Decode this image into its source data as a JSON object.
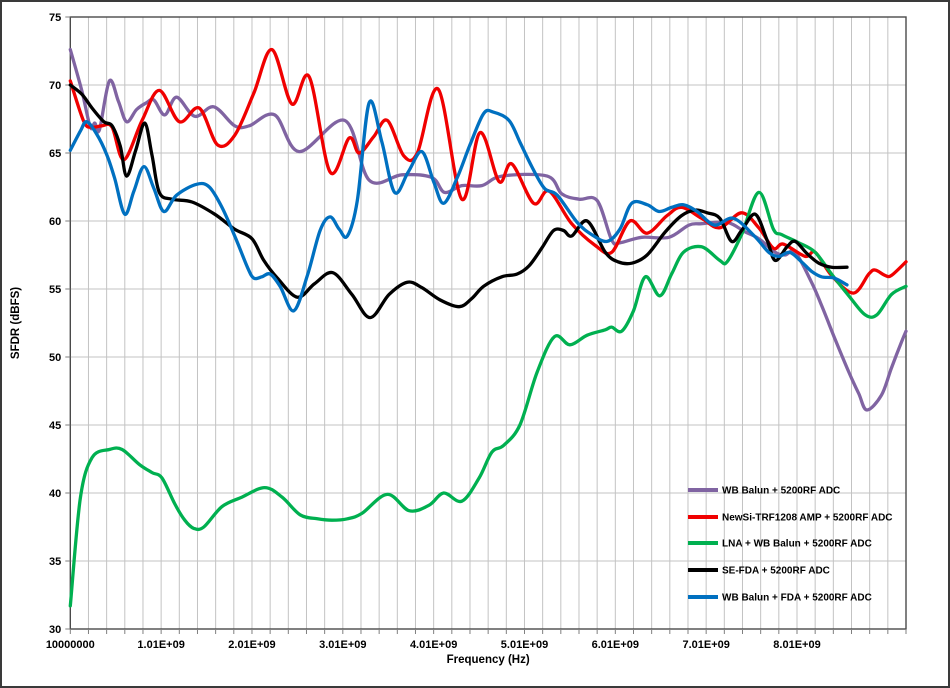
{
  "chart_data": {
    "type": "line",
    "title": "",
    "xlabel": "Frequency (Hz)",
    "ylabel": "SFDR (dBFS)",
    "grid": true,
    "legend_position": "inside-bottom-right",
    "x_axis": {
      "unit": "GHz",
      "min_ghz": 0.01,
      "max_ghz": 9.21,
      "minor_step_ghz": 0.2,
      "tick_labels": [
        {
          "value_ghz": 0.01,
          "label": "10000000"
        },
        {
          "value_ghz": 1.01,
          "label": "1.01E+09"
        },
        {
          "value_ghz": 2.01,
          "label": "2.01E+09"
        },
        {
          "value_ghz": 3.01,
          "label": "3.01E+09"
        },
        {
          "value_ghz": 4.01,
          "label": "4.01E+09"
        },
        {
          "value_ghz": 5.01,
          "label": "5.01E+09"
        },
        {
          "value_ghz": 6.01,
          "label": "6.01E+09"
        },
        {
          "value_ghz": 7.01,
          "label": "7.01E+09"
        },
        {
          "value_ghz": 8.01,
          "label": "8.01E+09"
        }
      ]
    },
    "y_axis": {
      "min": 30,
      "max": 75,
      "step": 5,
      "tick_labels": [
        "30",
        "35",
        "40",
        "45",
        "50",
        "55",
        "60",
        "65",
        "70",
        "75"
      ]
    },
    "series": [
      {
        "id": "wb-balun",
        "name": "WB Balun + 5200RF ADC",
        "color": "#8064A2",
        "points": [
          [
            0.01,
            72.6
          ],
          [
            0.14,
            69.5
          ],
          [
            0.23,
            66.9
          ],
          [
            0.28,
            67.2
          ],
          [
            0.33,
            66.7
          ],
          [
            0.44,
            70.3
          ],
          [
            0.54,
            68.8
          ],
          [
            0.63,
            67.3
          ],
          [
            0.74,
            68.2
          ],
          [
            0.85,
            68.7
          ],
          [
            0.93,
            68.9
          ],
          [
            1.05,
            67.8
          ],
          [
            1.18,
            69.1
          ],
          [
            1.38,
            67.7
          ],
          [
            1.59,
            68.4
          ],
          [
            1.82,
            67.0
          ],
          [
            1.98,
            67.0
          ],
          [
            2.26,
            67.8
          ],
          [
            2.53,
            65.1
          ],
          [
            3.03,
            67.4
          ],
          [
            3.3,
            63.0
          ],
          [
            3.66,
            63.4
          ],
          [
            3.99,
            63.2
          ],
          [
            4.13,
            62.1
          ],
          [
            4.32,
            62.6
          ],
          [
            4.54,
            62.6
          ],
          [
            4.76,
            63.3
          ],
          [
            5.26,
            63.3
          ],
          [
            5.42,
            62.0
          ],
          [
            5.61,
            61.6
          ],
          [
            5.81,
            61.5
          ],
          [
            5.97,
            58.6
          ],
          [
            6.06,
            58.4
          ],
          [
            6.3,
            58.8
          ],
          [
            6.6,
            58.8
          ],
          [
            6.82,
            59.7
          ],
          [
            6.96,
            59.8
          ],
          [
            7.24,
            59.9
          ],
          [
            7.44,
            59.2
          ],
          [
            7.59,
            58.7
          ],
          [
            7.77,
            57.7
          ],
          [
            7.88,
            57.5
          ],
          [
            7.99,
            57.7
          ],
          [
            8.17,
            55.5
          ],
          [
            8.28,
            53.8
          ],
          [
            8.43,
            51.3
          ],
          [
            8.58,
            48.9
          ],
          [
            8.69,
            47.3
          ],
          [
            8.78,
            46.1
          ],
          [
            8.94,
            47.2
          ],
          [
            9.05,
            49.2
          ],
          [
            9.16,
            51.1
          ],
          [
            9.21,
            51.9
          ]
        ]
      },
      {
        "id": "newsi-trf1208-amp",
        "name": "NewSi-TRF1208 AMP + 5200RF ADC",
        "color": "#F00000",
        "points": [
          [
            0.01,
            70.3
          ],
          [
            0.16,
            67.3
          ],
          [
            0.25,
            66.9
          ],
          [
            0.36,
            67.0
          ],
          [
            0.47,
            66.9
          ],
          [
            0.6,
            64.5
          ],
          [
            0.8,
            67.4
          ],
          [
            0.99,
            69.6
          ],
          [
            1.21,
            67.3
          ],
          [
            1.43,
            68.3
          ],
          [
            1.63,
            65.6
          ],
          [
            1.82,
            66.3
          ],
          [
            2.03,
            69.4
          ],
          [
            2.23,
            72.6
          ],
          [
            2.45,
            68.6
          ],
          [
            2.64,
            70.6
          ],
          [
            2.87,
            63.6
          ],
          [
            3.08,
            66.1
          ],
          [
            3.19,
            65.0
          ],
          [
            3.35,
            66.2
          ],
          [
            3.5,
            67.4
          ],
          [
            3.68,
            64.8
          ],
          [
            3.83,
            65.0
          ],
          [
            4.06,
            69.7
          ],
          [
            4.32,
            61.6
          ],
          [
            4.52,
            66.5
          ],
          [
            4.73,
            62.9
          ],
          [
            4.87,
            64.2
          ],
          [
            5.11,
            61.3
          ],
          [
            5.28,
            62.2
          ],
          [
            5.53,
            59.8
          ],
          [
            5.79,
            58.2
          ],
          [
            5.97,
            57.7
          ],
          [
            6.17,
            60.0
          ],
          [
            6.36,
            59.1
          ],
          [
            6.58,
            60.4
          ],
          [
            6.74,
            61.0
          ],
          [
            6.96,
            60.2
          ],
          [
            7.16,
            59.5
          ],
          [
            7.4,
            60.6
          ],
          [
            7.59,
            59.5
          ],
          [
            7.75,
            58.0
          ],
          [
            7.86,
            58.3
          ],
          [
            8.1,
            57.4
          ],
          [
            8.21,
            57.7
          ],
          [
            8.39,
            56.0
          ],
          [
            8.63,
            54.7
          ],
          [
            8.8,
            56.1
          ],
          [
            8.87,
            56.4
          ],
          [
            8.98,
            56.0
          ],
          [
            9.05,
            56.0
          ],
          [
            9.21,
            57.0
          ]
        ]
      },
      {
        "id": "lna-wb-balun",
        "name": "LNA + WB Balun + 5200RF ADC",
        "color": "#00B050",
        "points": [
          [
            0.01,
            31.7
          ],
          [
            0.12,
            39.6
          ],
          [
            0.25,
            42.6
          ],
          [
            0.44,
            43.2
          ],
          [
            0.58,
            43.2
          ],
          [
            0.77,
            42.1
          ],
          [
            0.91,
            41.5
          ],
          [
            1.02,
            41.1
          ],
          [
            1.16,
            39.2
          ],
          [
            1.27,
            38.0
          ],
          [
            1.37,
            37.4
          ],
          [
            1.48,
            37.5
          ],
          [
            1.68,
            39.0
          ],
          [
            1.9,
            39.7
          ],
          [
            2.15,
            40.4
          ],
          [
            2.34,
            39.7
          ],
          [
            2.54,
            38.4
          ],
          [
            2.73,
            38.1
          ],
          [
            2.89,
            38.0
          ],
          [
            3.06,
            38.1
          ],
          [
            3.22,
            38.5
          ],
          [
            3.5,
            39.9
          ],
          [
            3.74,
            38.7
          ],
          [
            3.96,
            39.1
          ],
          [
            4.12,
            40.0
          ],
          [
            4.32,
            39.4
          ],
          [
            4.51,
            41.1
          ],
          [
            4.65,
            43.0
          ],
          [
            4.78,
            43.5
          ],
          [
            4.96,
            45.0
          ],
          [
            5.15,
            48.9
          ],
          [
            5.34,
            51.5
          ],
          [
            5.51,
            50.9
          ],
          [
            5.7,
            51.6
          ],
          [
            5.9,
            52.0
          ],
          [
            5.97,
            52.2
          ],
          [
            6.08,
            51.9
          ],
          [
            6.21,
            53.4
          ],
          [
            6.34,
            55.9
          ],
          [
            6.5,
            54.5
          ],
          [
            6.63,
            56.1
          ],
          [
            6.76,
            57.7
          ],
          [
            6.96,
            58.1
          ],
          [
            7.16,
            57.1
          ],
          [
            7.24,
            57.0
          ],
          [
            7.4,
            59.0
          ],
          [
            7.59,
            62.1
          ],
          [
            7.75,
            59.4
          ],
          [
            7.84,
            59.0
          ],
          [
            8.03,
            58.4
          ],
          [
            8.21,
            57.7
          ],
          [
            8.39,
            56.1
          ],
          [
            8.58,
            54.5
          ],
          [
            8.76,
            53.1
          ],
          [
            8.89,
            53.1
          ],
          [
            9.05,
            54.6
          ],
          [
            9.21,
            55.2
          ]
        ]
      },
      {
        "id": "se-fda",
        "name": "SE-FDA + 5200RF ADC",
        "color": "#000000",
        "points": [
          [
            0.01,
            70.0
          ],
          [
            0.14,
            69.3
          ],
          [
            0.25,
            68.3
          ],
          [
            0.38,
            67.3
          ],
          [
            0.47,
            67.0
          ],
          [
            0.56,
            65.5
          ],
          [
            0.63,
            63.3
          ],
          [
            0.73,
            65.2
          ],
          [
            0.83,
            67.2
          ],
          [
            0.91,
            64.8
          ],
          [
            0.99,
            62.1
          ],
          [
            1.13,
            61.6
          ],
          [
            1.35,
            61.4
          ],
          [
            1.6,
            60.5
          ],
          [
            1.82,
            59.4
          ],
          [
            2.01,
            58.7
          ],
          [
            2.14,
            57.1
          ],
          [
            2.29,
            55.8
          ],
          [
            2.51,
            54.4
          ],
          [
            2.7,
            55.4
          ],
          [
            2.9,
            56.2
          ],
          [
            3.11,
            54.6
          ],
          [
            3.31,
            52.9
          ],
          [
            3.52,
            54.6
          ],
          [
            3.72,
            55.5
          ],
          [
            3.88,
            55.1
          ],
          [
            4.08,
            54.2
          ],
          [
            4.29,
            53.7
          ],
          [
            4.43,
            54.3
          ],
          [
            4.56,
            55.2
          ],
          [
            4.76,
            55.9
          ],
          [
            4.93,
            56.1
          ],
          [
            5.06,
            56.7
          ],
          [
            5.2,
            58.0
          ],
          [
            5.33,
            59.3
          ],
          [
            5.44,
            59.3
          ],
          [
            5.53,
            58.9
          ],
          [
            5.7,
            60.0
          ],
          [
            5.9,
            57.7
          ],
          [
            6.04,
            57.0
          ],
          [
            6.19,
            56.9
          ],
          [
            6.36,
            57.5
          ],
          [
            6.56,
            59.2
          ],
          [
            6.74,
            60.4
          ],
          [
            6.89,
            60.8
          ],
          [
            7.02,
            60.6
          ],
          [
            7.16,
            60.2
          ],
          [
            7.29,
            58.5
          ],
          [
            7.4,
            59.3
          ],
          [
            7.55,
            60.5
          ],
          [
            7.68,
            58.6
          ],
          [
            7.77,
            57.1
          ],
          [
            7.9,
            58.1
          ],
          [
            7.99,
            58.5
          ],
          [
            8.12,
            57.6
          ],
          [
            8.25,
            56.9
          ],
          [
            8.39,
            56.6
          ],
          [
            8.56,
            56.6
          ]
        ]
      },
      {
        "id": "wb-balun-fda",
        "name": "WB Balun + FDA + 5200RF ADC",
        "color": "#0070C0",
        "points": [
          [
            0.01,
            65.2
          ],
          [
            0.12,
            66.6
          ],
          [
            0.19,
            67.3
          ],
          [
            0.3,
            66.4
          ],
          [
            0.41,
            64.9
          ],
          [
            0.5,
            63.1
          ],
          [
            0.61,
            60.5
          ],
          [
            0.71,
            62.2
          ],
          [
            0.82,
            64.0
          ],
          [
            0.93,
            62.4
          ],
          [
            1.04,
            60.7
          ],
          [
            1.18,
            61.9
          ],
          [
            1.4,
            62.7
          ],
          [
            1.54,
            62.5
          ],
          [
            1.68,
            61.0
          ],
          [
            1.82,
            58.9
          ],
          [
            1.96,
            56.6
          ],
          [
            2.03,
            55.8
          ],
          [
            2.12,
            55.9
          ],
          [
            2.21,
            56.1
          ],
          [
            2.32,
            55.2
          ],
          [
            2.47,
            53.4
          ],
          [
            2.62,
            56.0
          ],
          [
            2.76,
            59.3
          ],
          [
            2.87,
            60.3
          ],
          [
            2.97,
            59.4
          ],
          [
            3.06,
            58.9
          ],
          [
            3.17,
            61.5
          ],
          [
            3.3,
            68.7
          ],
          [
            3.44,
            65.8
          ],
          [
            3.58,
            62.1
          ],
          [
            3.73,
            63.6
          ],
          [
            3.88,
            65.1
          ],
          [
            4.01,
            62.9
          ],
          [
            4.12,
            61.3
          ],
          [
            4.27,
            63.2
          ],
          [
            4.41,
            65.6
          ],
          [
            4.56,
            67.9
          ],
          [
            4.67,
            68.0
          ],
          [
            4.84,
            67.4
          ],
          [
            4.96,
            65.8
          ],
          [
            5.09,
            64.0
          ],
          [
            5.23,
            62.4
          ],
          [
            5.37,
            61.9
          ],
          [
            5.59,
            59.9
          ],
          [
            5.75,
            59.0
          ],
          [
            5.92,
            58.5
          ],
          [
            6.06,
            59.4
          ],
          [
            6.19,
            61.3
          ],
          [
            6.36,
            61.2
          ],
          [
            6.49,
            60.7
          ],
          [
            6.63,
            61.0
          ],
          [
            6.76,
            61.2
          ],
          [
            6.91,
            60.7
          ],
          [
            7.1,
            59.7
          ],
          [
            7.31,
            60.2
          ],
          [
            7.54,
            58.9
          ],
          [
            7.7,
            57.7
          ],
          [
            7.81,
            57.4
          ],
          [
            7.93,
            57.7
          ],
          [
            8.06,
            57.0
          ],
          [
            8.17,
            56.3
          ],
          [
            8.28,
            55.9
          ],
          [
            8.42,
            55.8
          ],
          [
            8.56,
            55.3
          ]
        ]
      }
    ],
    "style_colors": {
      "gridline": "#C3C3C3",
      "plot_border": "#4A4A4A",
      "tick": "#7F7F7F",
      "text": "#000000"
    }
  }
}
